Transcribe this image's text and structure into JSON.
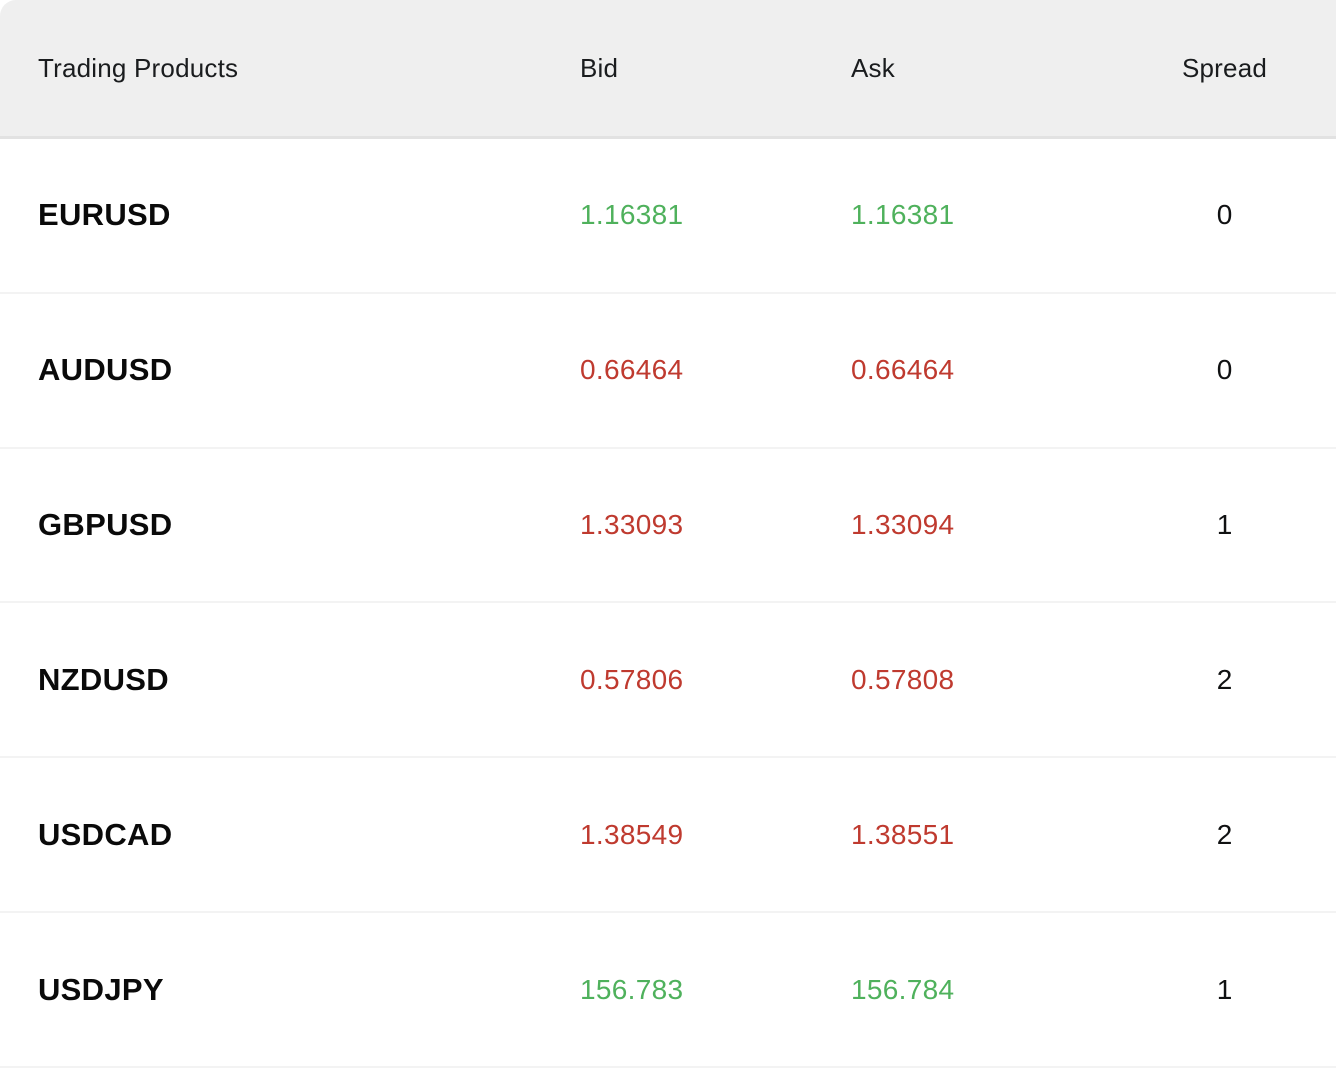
{
  "header": {
    "columns": [
      {
        "label": "Trading Products"
      },
      {
        "label": "Bid"
      },
      {
        "label": "Ask"
      },
      {
        "label": "Spread"
      }
    ]
  },
  "rows": [
    {
      "product": "EURUSD",
      "bid": "1.16381",
      "ask": "1.16381",
      "spread": "0",
      "trend": "up"
    },
    {
      "product": "AUDUSD",
      "bid": "0.66464",
      "ask": "0.66464",
      "spread": "0",
      "trend": "down"
    },
    {
      "product": "GBPUSD",
      "bid": "1.33093",
      "ask": "1.33094",
      "spread": "1",
      "trend": "down"
    },
    {
      "product": "NZDUSD",
      "bid": "0.57806",
      "ask": "0.57808",
      "spread": "2",
      "trend": "down"
    },
    {
      "product": "USDCAD",
      "bid": "1.38549",
      "ask": "1.38551",
      "spread": "2",
      "trend": "down"
    },
    {
      "product": "USDJPY",
      "bid": "156.783",
      "ask": "156.784",
      "spread": "1",
      "trend": "up"
    }
  ],
  "colors": {
    "up": "#4fb15c",
    "down": "#bf3a2f",
    "header_bg": "#efefef",
    "header_border": "#e2e2e2",
    "row_separator": "#f3f3f3"
  }
}
